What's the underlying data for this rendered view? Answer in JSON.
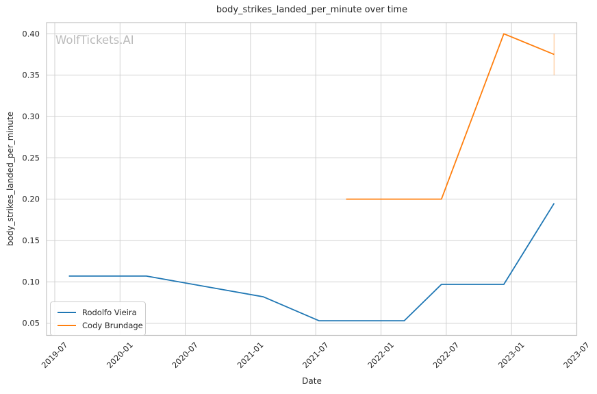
{
  "figure": {
    "watermark": "WolfTickets.AI"
  },
  "chart_data": {
    "type": "line",
    "title": "body_strikes_landed_per_minute over time",
    "xlabel": "Date",
    "ylabel": "body_strikes_landed_per_minute",
    "x_ticks": [
      "2019-07",
      "2020-01",
      "2020-07",
      "2021-01",
      "2021-07",
      "2022-01",
      "2022-07",
      "2023-01",
      "2023-07"
    ],
    "y_ticks": [
      "0.05",
      "0.10",
      "0.15",
      "0.20",
      "0.25",
      "0.30",
      "0.35",
      "0.40"
    ],
    "xlim": [
      "2019-06-08",
      "2023-07-01"
    ],
    "ylim": [
      0.035,
      0.413
    ],
    "grid": true,
    "legend_position": "lower left",
    "series": [
      {
        "name": "Rodolfo Vieira",
        "color": "#1f77b4",
        "points": [
          {
            "date": "2019-08-10",
            "value": 0.107
          },
          {
            "date": "2020-03-14",
            "value": 0.107
          },
          {
            "date": "2021-02-06",
            "value": 0.082
          },
          {
            "date": "2021-07-10",
            "value": 0.053
          },
          {
            "date": "2022-03-05",
            "value": 0.053
          },
          {
            "date": "2022-06-18",
            "value": 0.097
          },
          {
            "date": "2022-12-10",
            "value": 0.097
          },
          {
            "date": "2023-04-29",
            "value": 0.195
          }
        ]
      },
      {
        "name": "Cody Brundage",
        "color": "#ff7f0e",
        "points": [
          {
            "date": "2021-09-25",
            "value": 0.2
          },
          {
            "date": "2022-06-18",
            "value": 0.2
          },
          {
            "date": "2022-12-10",
            "value": 0.4
          },
          {
            "date": "2023-04-29",
            "value": 0.375
          }
        ],
        "error_bar": {
          "date": "2023-04-29",
          "low": 0.35,
          "high": 0.4
        }
      }
    ]
  }
}
